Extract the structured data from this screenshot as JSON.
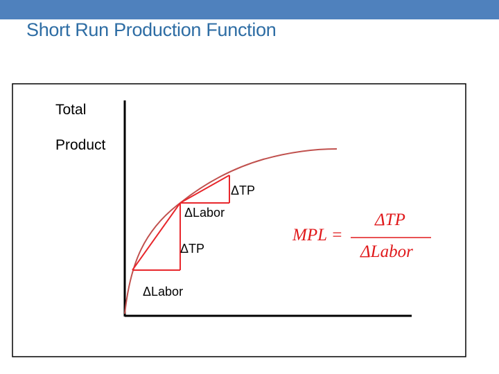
{
  "slide": {
    "title": "Short Run Production Function",
    "accent_bar_color": "#4f81bd",
    "title_color": "#2e6da4"
  },
  "diagram": {
    "y_axis_label_line1": "Total",
    "y_axis_label_line2": "Product",
    "curve_color": "#c0504d",
    "step_color": "#e8262b",
    "upper_step": {
      "delta_tp": "ΔTP",
      "delta_labor": "ΔLabor"
    },
    "lower_step": {
      "delta_tp": "ΔTP",
      "delta_labor": "ΔLabor"
    },
    "formula": {
      "lhs": "MPL =",
      "numerator": "ΔTP",
      "denominator": "ΔLabor"
    }
  }
}
